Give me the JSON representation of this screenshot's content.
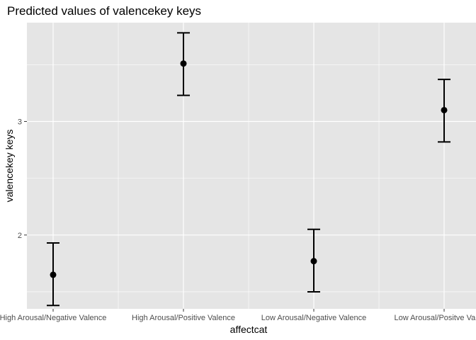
{
  "chart_data": {
    "type": "errorbar",
    "title": "Predicted values of valencekey keys",
    "xlabel": "affectcat",
    "ylabel": "valencekey keys",
    "categories": [
      "High Arousal/Negative Valence",
      "High Arousal/Positive Valence",
      "Low Arousal/Negative Valence",
      "Low Arousal/Positve Valence"
    ],
    "series": [
      {
        "values": [
          1.65,
          3.51,
          1.77,
          3.1
        ],
        "lower": [
          1.38,
          3.23,
          1.5,
          2.82
        ],
        "upper": [
          1.93,
          3.78,
          2.05,
          3.37
        ]
      }
    ],
    "ylim": [
      1.35,
      3.87
    ],
    "yticks": [
      2,
      3
    ],
    "ytick_labels": [
      "2",
      "3"
    ],
    "grid": true,
    "panel_color": "#E5E5E5",
    "grid_color": "#FFFFFF",
    "point_color": "#000000"
  }
}
